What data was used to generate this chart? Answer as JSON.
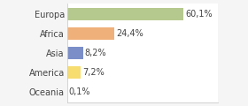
{
  "categories": [
    "Europa",
    "Africa",
    "Asia",
    "America",
    "Oceania"
  ],
  "values": [
    60.1,
    24.4,
    8.2,
    7.2,
    0.1
  ],
  "labels": [
    "60,1%",
    "24,4%",
    "8,2%",
    "7,2%",
    "0,1%"
  ],
  "bar_colors": [
    "#b5c98e",
    "#f0b07a",
    "#7b8ec8",
    "#f7dc6f",
    "#f1948a"
  ],
  "background_color": "#f5f5f5",
  "plot_bg_color": "#ffffff",
  "border_color": "#cccccc",
  "label_fontsize": 7.0,
  "tick_fontsize": 7.0,
  "xlim": [
    0,
    78
  ],
  "bar_height": 0.62
}
